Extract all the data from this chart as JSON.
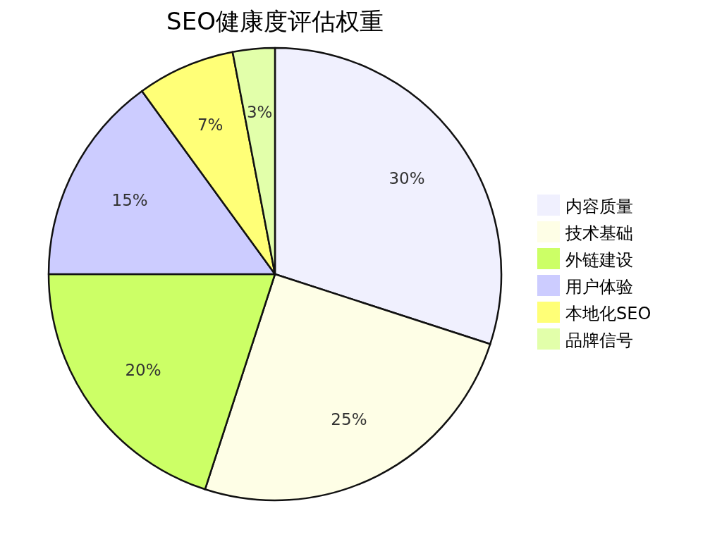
{
  "chart_data": {
    "type": "pie",
    "title": "SEO健康度评估权重",
    "categories": [
      "内容质量",
      "技术基础",
      "外链建设",
      "用户体验",
      "本地化SEO",
      "品牌信号"
    ],
    "values": [
      30,
      25,
      20,
      15,
      7,
      3
    ],
    "colors": [
      "#f0f0fe",
      "#fefee6",
      "#ccff66",
      "#ccccff",
      "#ffff77",
      "#e2ffaa"
    ],
    "value_labels": [
      "30%",
      "25%",
      "20%",
      "15%",
      "7%",
      "3%"
    ],
    "legend": "right"
  }
}
